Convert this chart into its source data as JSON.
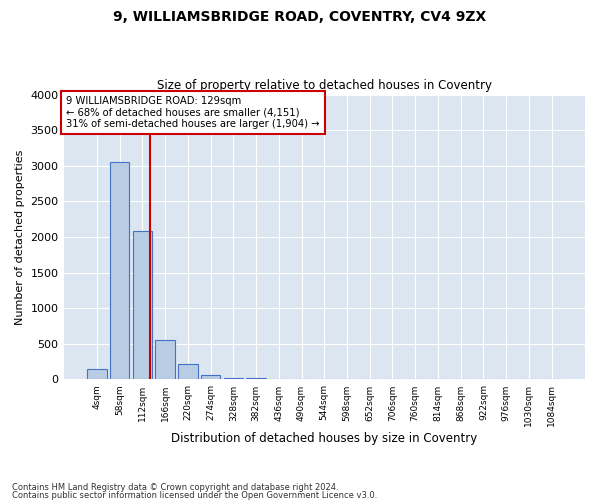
{
  "title1": "9, WILLIAMSBRIDGE ROAD, COVENTRY, CV4 9ZX",
  "title2": "Size of property relative to detached houses in Coventry",
  "xlabel": "Distribution of detached houses by size in Coventry",
  "ylabel": "Number of detached properties",
  "footnote1": "Contains HM Land Registry data © Crown copyright and database right 2024.",
  "footnote2": "Contains public sector information licensed under the Open Government Licence v3.0.",
  "bin_labels": [
    "4sqm",
    "58sqm",
    "112sqm",
    "166sqm",
    "220sqm",
    "274sqm",
    "328sqm",
    "382sqm",
    "436sqm",
    "490sqm",
    "544sqm",
    "598sqm",
    "652sqm",
    "706sqm",
    "760sqm",
    "814sqm",
    "868sqm",
    "922sqm",
    "976sqm",
    "1030sqm",
    "1084sqm"
  ],
  "bar_values": [
    150,
    3050,
    2080,
    560,
    215,
    60,
    25,
    15,
    5,
    0,
    0,
    0,
    0,
    0,
    0,
    0,
    0,
    0,
    0,
    0,
    0
  ],
  "bar_color": "#b8cce4",
  "bar_edge_color": "#4472c4",
  "bg_color": "#dce6f1",
  "grid_color": "#ffffff",
  "vline_color": "#cc0000",
  "ylim": [
    0,
    4000
  ],
  "yticks": [
    0,
    500,
    1000,
    1500,
    2000,
    2500,
    3000,
    3500,
    4000
  ],
  "annotation_title": "9 WILLIAMSBRIDGE ROAD: 129sqm",
  "annotation_line1": "← 68% of detached houses are smaller (4,151)",
  "annotation_line2": "31% of semi-detached houses are larger (1,904) →",
  "annotation_box_color": "#cc0000",
  "vline_bin_index": 2.32,
  "title1_fontsize": 10,
  "title2_fontsize": 9
}
